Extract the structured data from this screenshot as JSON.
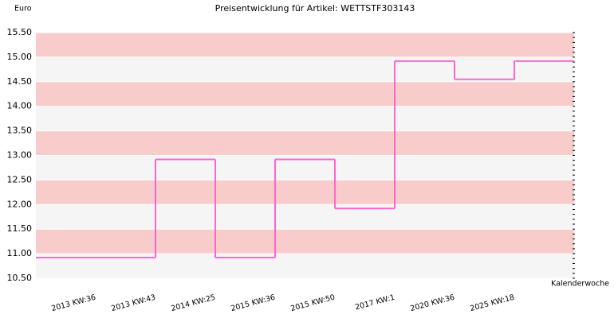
{
  "chart_data": {
    "type": "step",
    "title": "Preisentwicklung für Artikel: WETTSTF303143",
    "y_label": "Euro",
    "x_label": "Kalenderwoche",
    "categories": [
      "2013 KW:36",
      "2013 KW:43",
      "2014 KW:25",
      "2015 KW:36",
      "2015 KW:50",
      "2017 KW:1",
      "2020 KW:36",
      "2025 KW:18"
    ],
    "values": [
      10.92,
      12.92,
      10.92,
      12.92,
      11.92,
      14.92,
      14.55,
      14.92
    ],
    "color": "#ff66cc",
    "band_colors": [
      "#f5f5f5",
      "#f9cccc"
    ],
    "ylim": [
      10.5,
      15.5
    ],
    "yticks": [
      {
        "value": 10.5,
        "label": "10.50"
      },
      {
        "value": 11,
        "label": "11.00"
      },
      {
        "value": 11.5,
        "label": "11.50"
      },
      {
        "value": 12,
        "label": "12.00"
      },
      {
        "value": 12.5,
        "label": "12.50"
      },
      {
        "value": 13,
        "label": "13.00"
      },
      {
        "value": 13.5,
        "label": "13.50"
      },
      {
        "value": 14,
        "label": "14.00"
      },
      {
        "value": 14.5,
        "label": "14.50"
      },
      {
        "value": 15,
        "label": "15.00"
      },
      {
        "value": 15.5,
        "label": "15.50"
      }
    ]
  }
}
